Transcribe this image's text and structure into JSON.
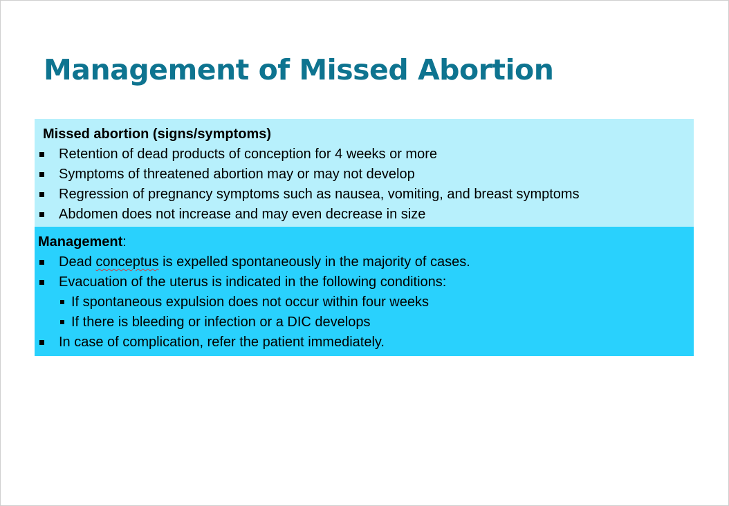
{
  "slide": {
    "title": "Management of Missed Abortion",
    "title_color": "#0e7490",
    "signs_box": {
      "background": "#b7f0fc",
      "heading": "Missed abortion (signs/symptoms)",
      "items": [
        "Retention of dead products of conception for 4 weeks or more",
        "Symptoms of threatened abortion may or may not develop",
        "Regression of pregnancy symptoms such as nausea, vomiting, and breast symptoms",
        "Abdomen does not increase and may even decrease in size"
      ]
    },
    "management_box": {
      "background": "#29d1fd",
      "heading": "Management",
      "heading_suffix": ":",
      "item1_before": "Dead ",
      "item1_flagged": "conceptus",
      "item1_after": " is expelled spontaneously in the majority of cases.",
      "item2": "Evacuation of the uterus is indicated in the following conditions:",
      "sub_items": [
        "If spontaneous expulsion does not occur within four weeks",
        "If there is bleeding or infection or a DIC develops"
      ],
      "item3": "In case of complication, refer the patient  immediately."
    }
  }
}
